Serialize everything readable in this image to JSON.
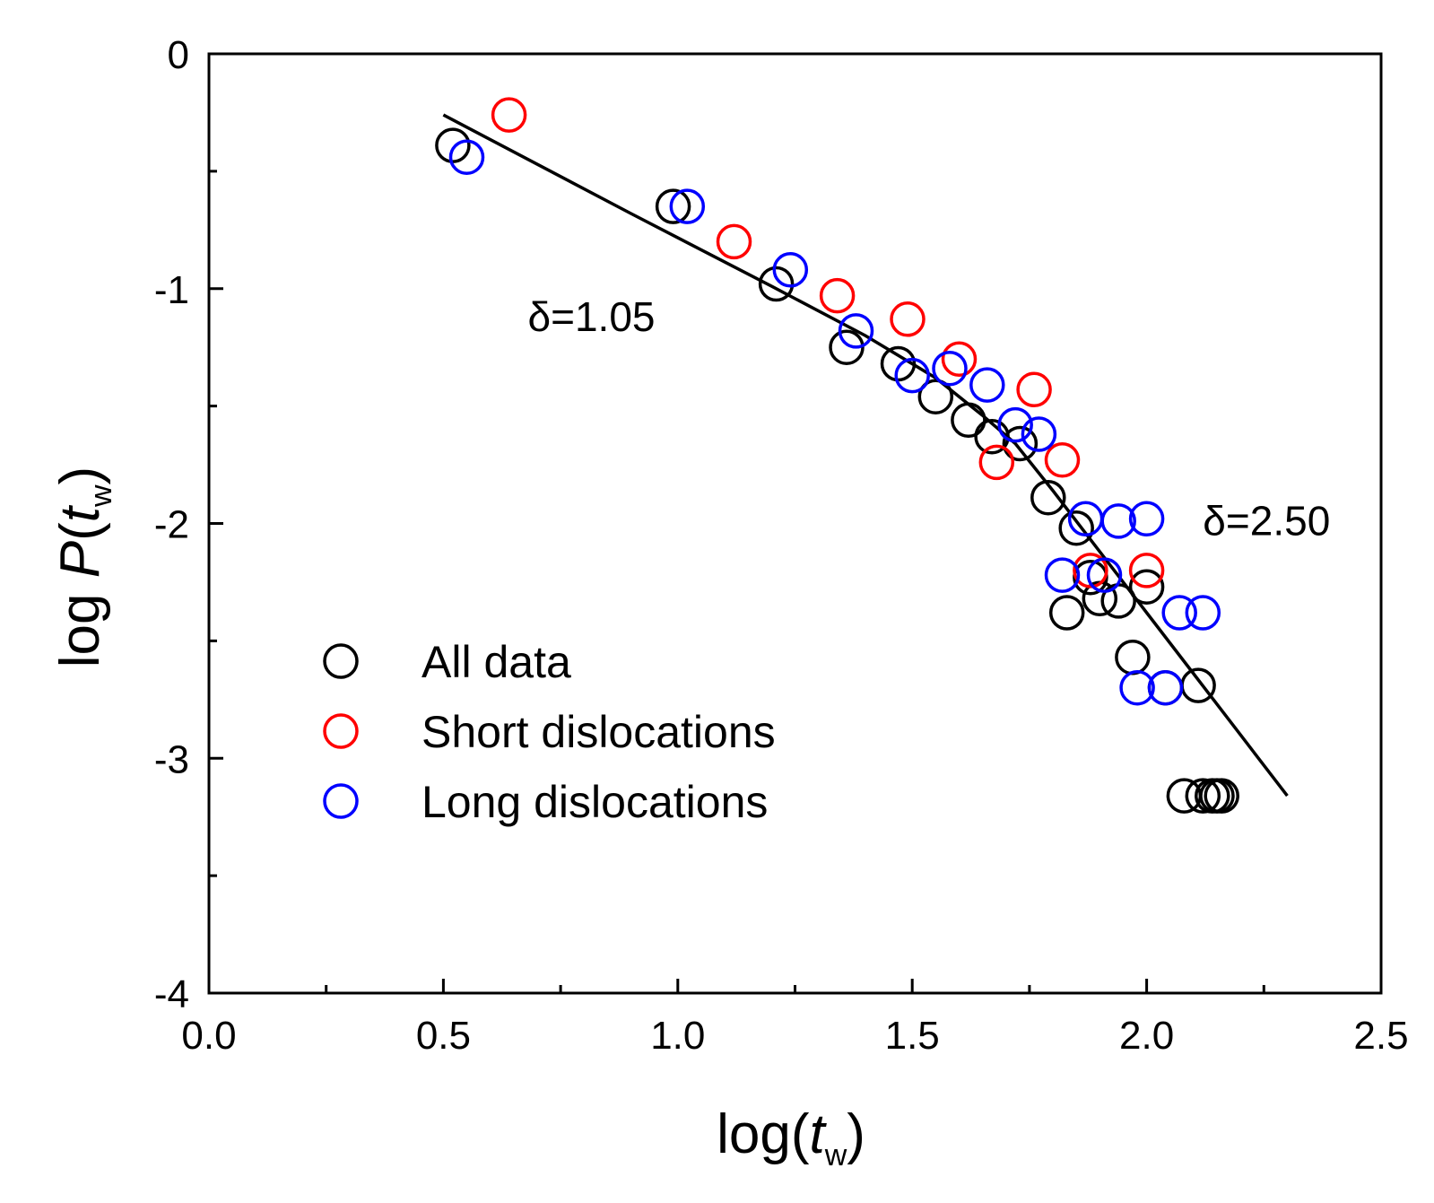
{
  "chart_data": {
    "type": "scatter",
    "xlim": [
      0,
      2.5
    ],
    "ylim": [
      -4,
      0
    ],
    "x_major_ticks": [
      0,
      0.5,
      1,
      1.5,
      2,
      2.5
    ],
    "x_tick_labels": [
      "0.0",
      "0.5",
      "1.0",
      "1.5",
      "2.0",
      "2.5"
    ],
    "x_minor_ticks": [
      0.25,
      0.75,
      1.25,
      1.75,
      2.25
    ],
    "y_major_ticks": [
      0,
      -1,
      -2,
      -3,
      -4
    ],
    "y_tick_labels": [
      "0",
      "-1",
      "-2",
      "-3",
      "-4"
    ],
    "y_minor_ticks": [
      -0.5,
      -1.5,
      -2.5,
      -3.5
    ],
    "xlabel": {
      "pre": "log(",
      "var": "t",
      "sub": "w",
      "post": ")"
    },
    "ylabel": {
      "pre": "log ",
      "func": "P",
      "open": "(",
      "var": "t",
      "sub": "w",
      "post": ")"
    },
    "grid": false,
    "legend_position": "lower-left",
    "series": [
      {
        "name": "All data",
        "color": "#000000",
        "marker": "open-circle",
        "points": [
          [
            0.52,
            -0.39
          ],
          [
            0.99,
            -0.65
          ],
          [
            1.21,
            -0.98
          ],
          [
            1.36,
            -1.25
          ],
          [
            1.47,
            -1.32
          ],
          [
            1.55,
            -1.46
          ],
          [
            1.62,
            -1.56
          ],
          [
            1.67,
            -1.63
          ],
          [
            1.73,
            -1.66
          ],
          [
            1.79,
            -1.89
          ],
          [
            1.83,
            -2.38
          ],
          [
            1.85,
            -2.02
          ],
          [
            1.88,
            -2.23
          ],
          [
            1.9,
            -2.32
          ],
          [
            1.94,
            -2.33
          ],
          [
            1.97,
            -2.57
          ],
          [
            2.0,
            -2.27
          ],
          [
            2.04,
            -2.7
          ],
          [
            2.08,
            -3.16
          ],
          [
            2.11,
            -2.69
          ],
          [
            2.12,
            -3.16
          ],
          [
            2.14,
            -3.16
          ],
          [
            2.15,
            -3.16
          ],
          [
            2.16,
            -3.16
          ]
        ]
      },
      {
        "name": "Short dislocations",
        "color": "#ff0000",
        "marker": "open-circle",
        "points": [
          [
            0.64,
            -0.26
          ],
          [
            1.12,
            -0.8
          ],
          [
            1.34,
            -1.03
          ],
          [
            1.49,
            -1.13
          ],
          [
            1.6,
            -1.3
          ],
          [
            1.68,
            -1.74
          ],
          [
            1.76,
            -1.43
          ],
          [
            1.82,
            -1.73
          ],
          [
            1.88,
            -2.2
          ],
          [
            2.0,
            -2.2
          ]
        ]
      },
      {
        "name": "Long dislocations",
        "color": "#0000ff",
        "marker": "open-circle",
        "points": [
          [
            0.55,
            -0.44
          ],
          [
            1.02,
            -0.65
          ],
          [
            1.24,
            -0.92
          ],
          [
            1.38,
            -1.18
          ],
          [
            1.5,
            -1.37
          ],
          [
            1.58,
            -1.34
          ],
          [
            1.66,
            -1.41
          ],
          [
            1.72,
            -1.58
          ],
          [
            1.77,
            -1.62
          ],
          [
            1.82,
            -2.22
          ],
          [
            1.87,
            -1.98
          ],
          [
            1.91,
            -2.22
          ],
          [
            1.94,
            -1.99
          ],
          [
            1.98,
            -2.7
          ],
          [
            2.0,
            -1.98
          ],
          [
            2.04,
            -2.7
          ],
          [
            2.07,
            -2.38
          ],
          [
            2.12,
            -2.38
          ]
        ]
      }
    ],
    "fit_line": {
      "color": "#000000",
      "points": [
        [
          0.5,
          -0.26
        ],
        [
          0.9,
          -0.68
        ],
        [
          1.2,
          -0.99
        ],
        [
          1.4,
          -1.2
        ],
        [
          1.55,
          -1.38
        ],
        [
          1.65,
          -1.54
        ],
        [
          1.72,
          -1.66
        ],
        [
          1.8,
          -1.86
        ],
        [
          1.9,
          -2.12
        ],
        [
          2.0,
          -2.38
        ],
        [
          2.1,
          -2.64
        ],
        [
          2.2,
          -2.9
        ],
        [
          2.3,
          -3.16
        ]
      ]
    },
    "annotations": [
      {
        "prefix": "δ",
        "value": "=1.05",
        "at": [
          0.68,
          -1.18
        ]
      },
      {
        "prefix": "δ",
        "value": "=2.50",
        "at": [
          2.12,
          -2.05
        ]
      }
    ]
  }
}
